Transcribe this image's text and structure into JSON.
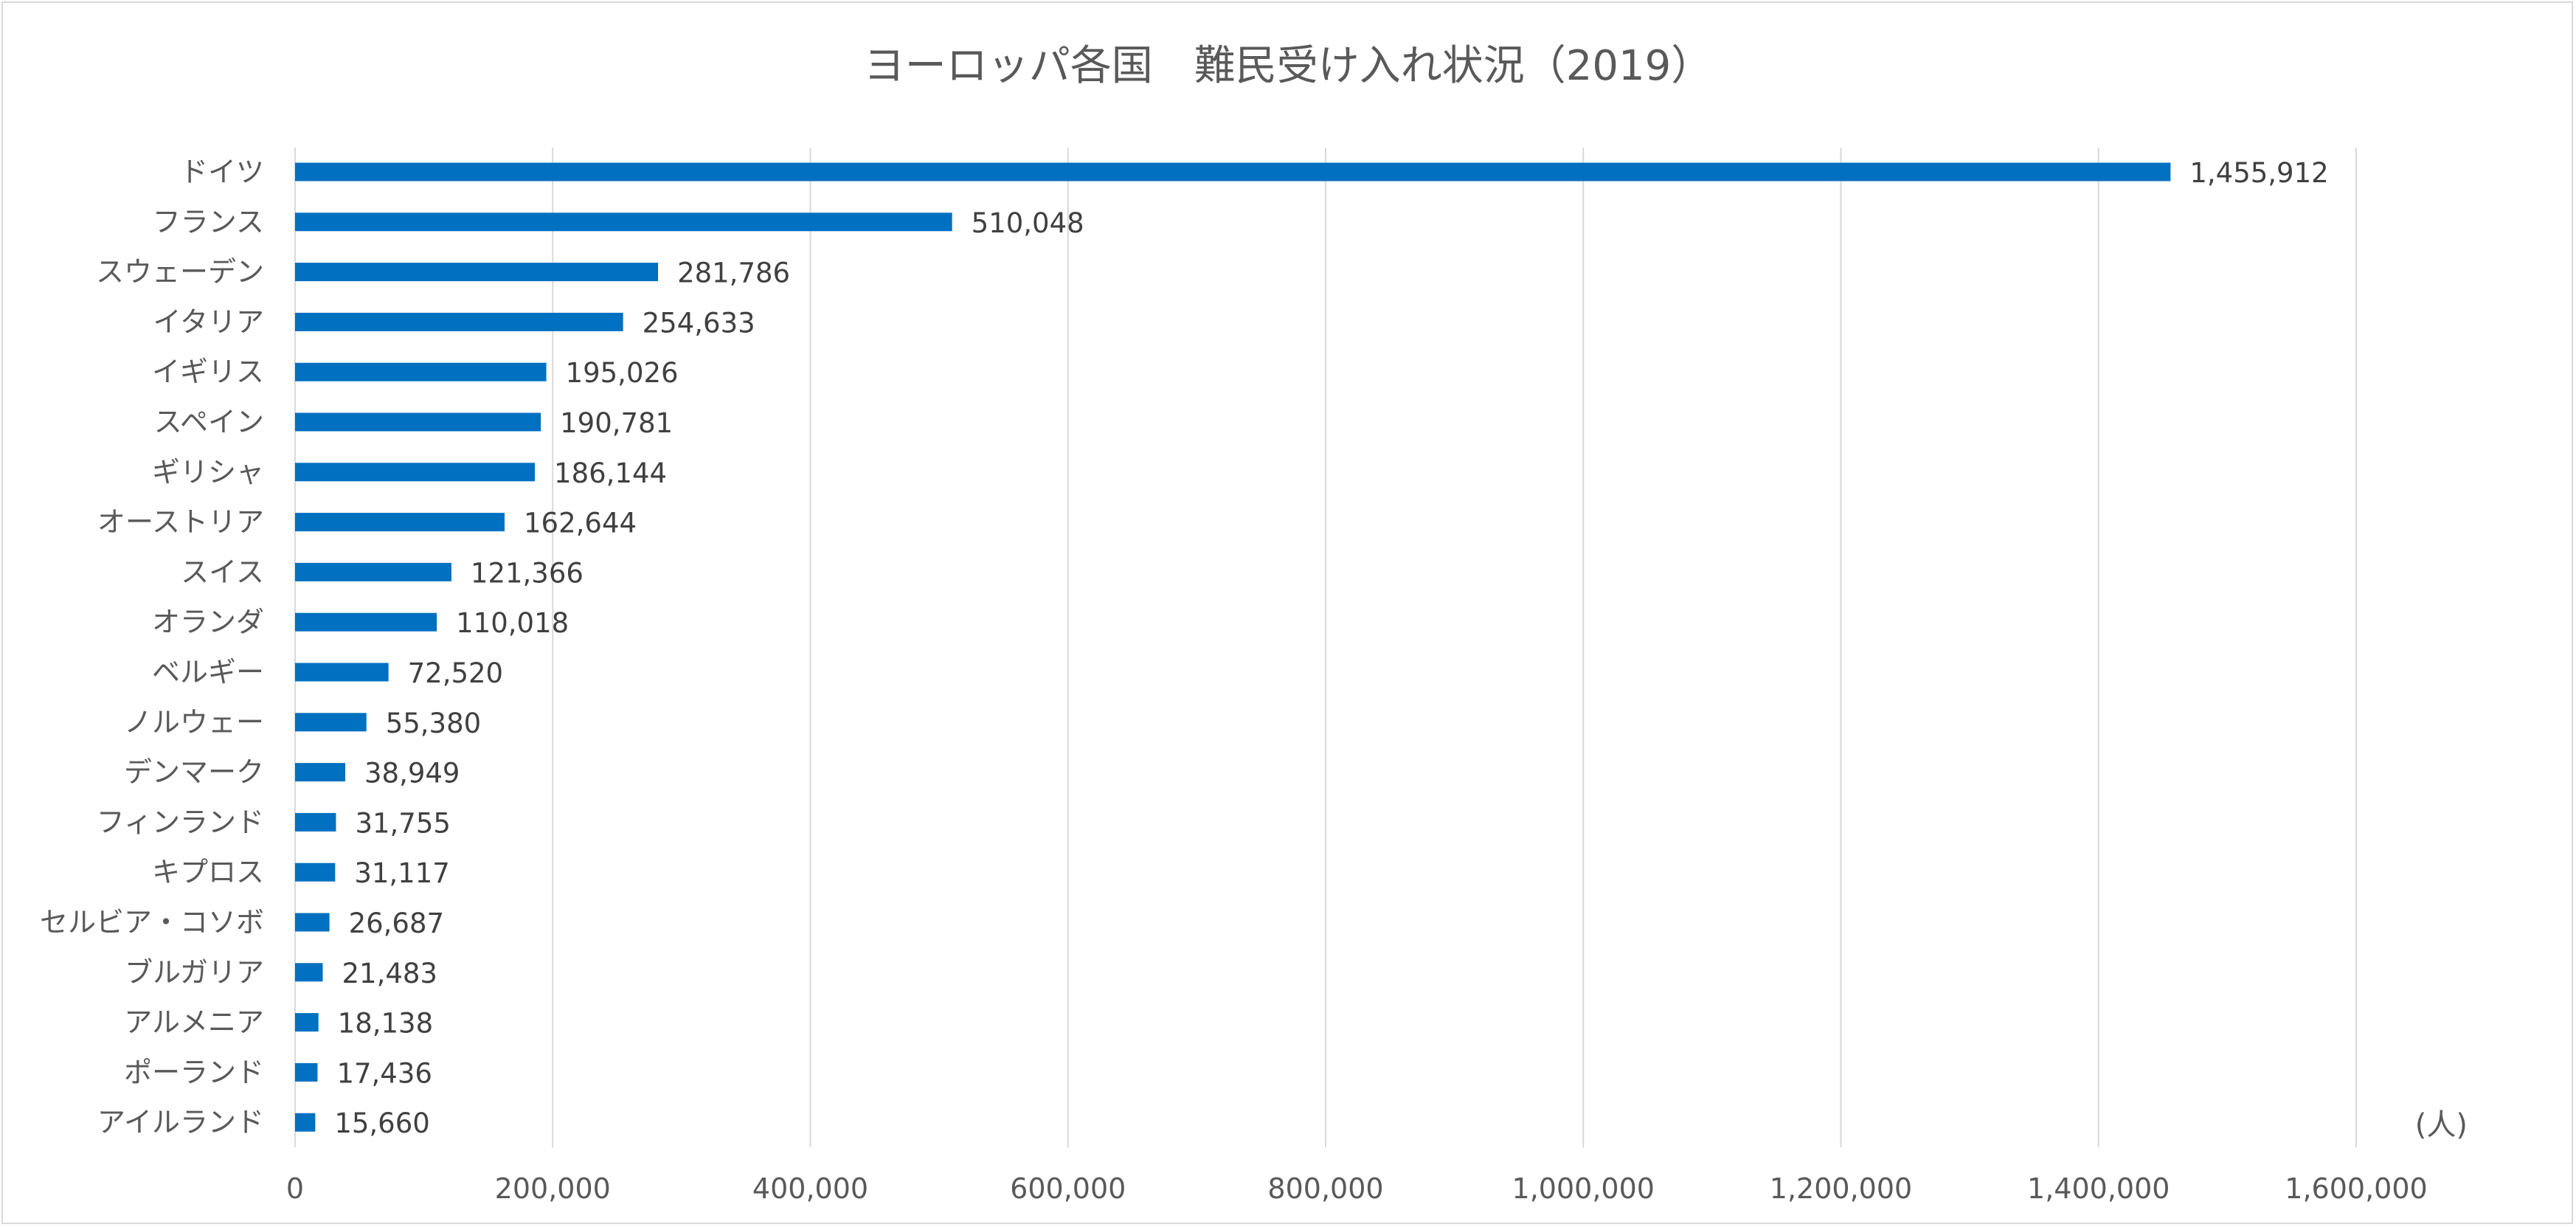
{
  "chart_data": {
    "type": "bar",
    "orientation": "horizontal",
    "title": "ヨーロッパ各国　難民受け入れ状況（2019）",
    "unit_label": "(人)",
    "categories": [
      "ドイツ",
      "フランス",
      "スウェーデン",
      "イタリア",
      "イギリス",
      "スペイン",
      "ギリシャ",
      "オーストリア",
      "スイス",
      "オランダ",
      "ベルギー",
      "ノルウェー",
      "デンマーク",
      "フィンランド",
      "キプロス",
      "セルビア・コソボ",
      "ブルガリア",
      "アルメニア",
      "ポーランド",
      "アイルランド"
    ],
    "values": [
      1455912,
      510048,
      281786,
      254633,
      195026,
      190781,
      186144,
      162644,
      121366,
      110018,
      72520,
      55380,
      38949,
      31755,
      31117,
      26687,
      21483,
      18138,
      17436,
      15660
    ],
    "data_labels": [
      "1,455,912",
      "510,048",
      "281,786",
      "254,633",
      "195,026",
      "190,781",
      "186,144",
      "162,644",
      "121,366",
      "110,018",
      "72,520",
      "55,380",
      "38,949",
      "31,755",
      "31,117",
      "26,687",
      "21,483",
      "18,138",
      "17,436",
      "15,660"
    ],
    "xlim": [
      0,
      1600000
    ],
    "x_ticks": [
      0,
      200000,
      400000,
      600000,
      800000,
      1000000,
      1200000,
      1400000,
      1600000
    ],
    "x_tick_labels": [
      "0",
      "200,000",
      "400,000",
      "600,000",
      "800,000",
      "1,000,000",
      "1,200,000",
      "1,400,000",
      "1,600,000"
    ],
    "grid": true,
    "legend": "none",
    "bar_color": "#0070C0",
    "grid_color": "#d9d9d9"
  }
}
